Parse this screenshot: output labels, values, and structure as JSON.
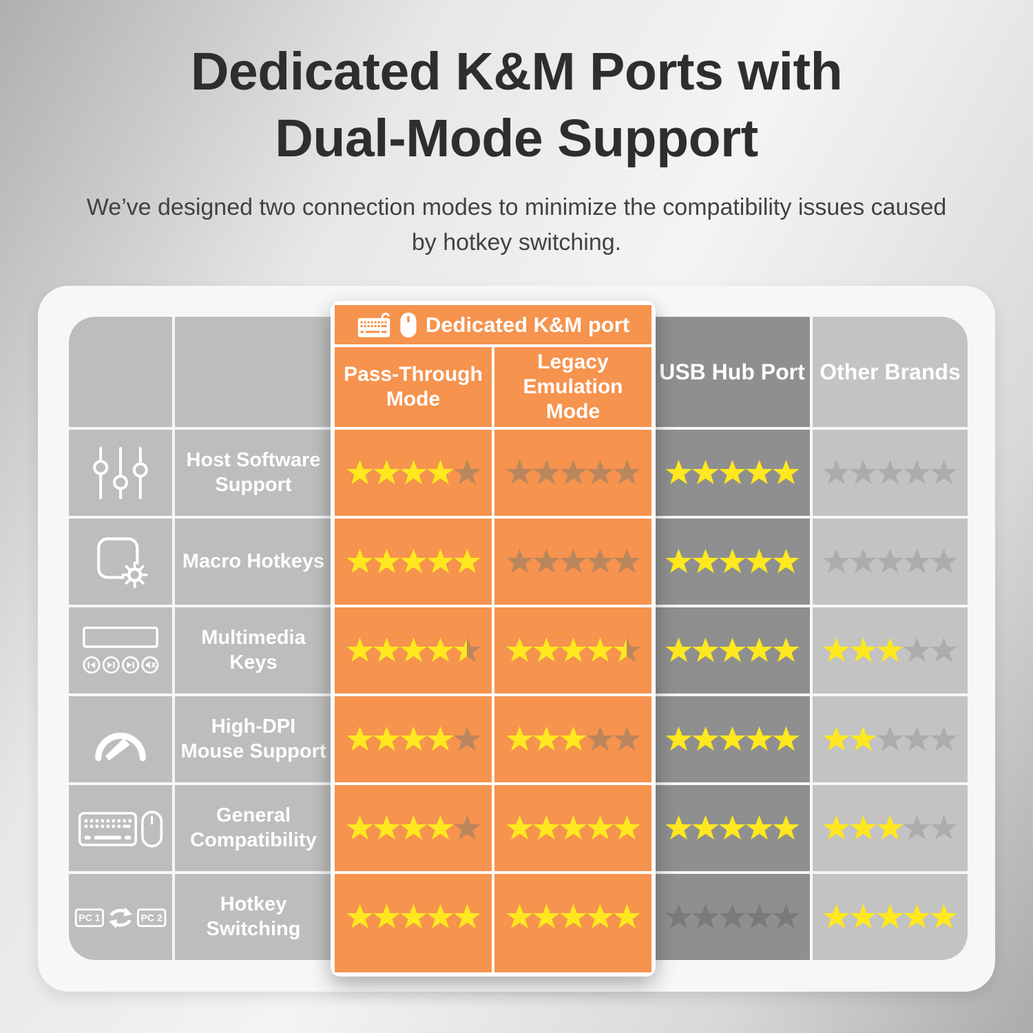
{
  "page": {
    "title_line1": "Dedicated K&M Ports with",
    "title_line2": "Dual-Mode Support",
    "subtitle": "We’ve designed two connection modes to minimize the compatibility issues caused by hotkey switching."
  },
  "table": {
    "group_header": {
      "label": "Dedicated K&M port",
      "icons": [
        "keyboard-icon",
        "mouse-icon"
      ]
    },
    "columns": [
      {
        "key": "pt",
        "label": "Pass-Through Mode"
      },
      {
        "key": "le",
        "label": "Legacy Emulation Mode"
      },
      {
        "key": "usb",
        "label": "USB Hub Port"
      },
      {
        "key": "ob",
        "label": "Other Brands"
      }
    ],
    "max_stars": 5,
    "hotkey_icon": {
      "pc1": "PC 1",
      "pc2": "PC 2"
    },
    "rows": [
      {
        "icon": "sliders-icon",
        "label": "Host Software Support",
        "ratings": {
          "pt": 4,
          "le": 0,
          "usb": 5,
          "ob": 0
        }
      },
      {
        "icon": "macro-icon",
        "label": "Macro Hotkeys",
        "ratings": {
          "pt": 5,
          "le": 0,
          "usb": 5,
          "ob": 0
        }
      },
      {
        "icon": "multimedia-icon",
        "label": "Multimedia Keys",
        "ratings": {
          "pt": 4.5,
          "le": 4.5,
          "usb": 5,
          "ob": 3
        }
      },
      {
        "icon": "gauge-icon",
        "label": "High-DPI Mouse Support",
        "ratings": {
          "pt": 4,
          "le": 3,
          "usb": 5,
          "ob": 2
        }
      },
      {
        "icon": "keyboard-mouse-icon",
        "label": "General Compatibility",
        "ratings": {
          "pt": 4,
          "le": 5,
          "usb": 5,
          "ob": 3
        }
      },
      {
        "icon": "pc-switch-icon",
        "label": "Hotkey Switching",
        "ratings": {
          "pt": 5,
          "le": 5,
          "usb": 0,
          "ob": 5
        }
      }
    ]
  },
  "colors": {
    "accent_orange": "#F6934E",
    "star_filled": "#FFE81F",
    "star_empty_on_orange": "#BA865D",
    "star_empty_on_dark": "#7A7A7A",
    "star_empty_on_light": "#ACACAC",
    "cell_gray": "#BDBDBD",
    "cell_dark": "#8F8F8F",
    "cell_light": "#C3C3C3"
  }
}
